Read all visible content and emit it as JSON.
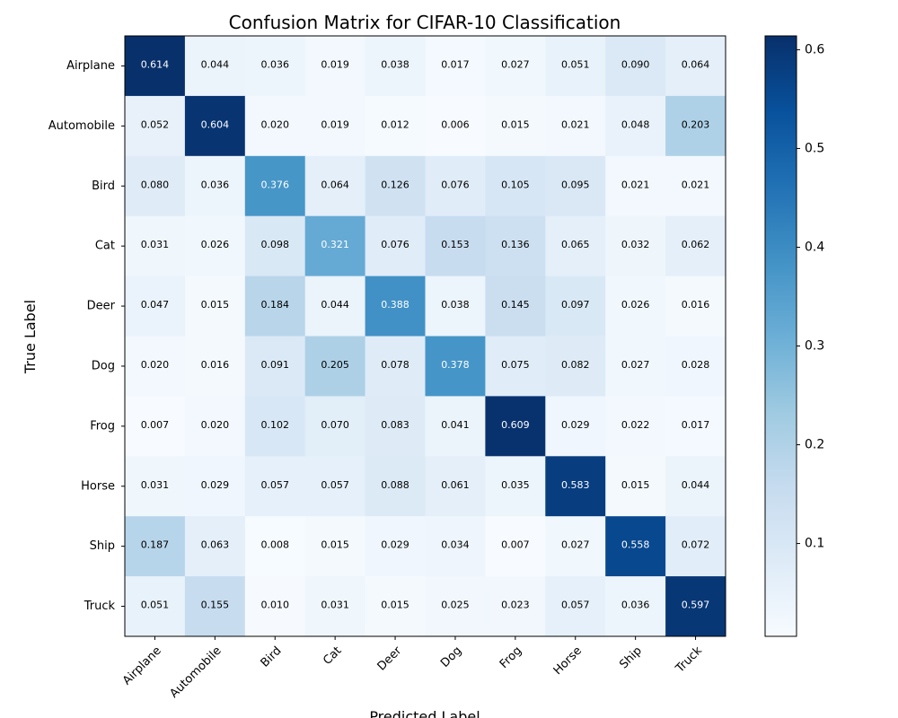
{
  "chart_data": {
    "type": "heatmap",
    "title": "Confusion Matrix for CIFAR-10 Classification",
    "xlabel": "Predicted Label",
    "ylabel": "True Label",
    "x_categories": [
      "Airplane",
      "Automobile",
      "Bird",
      "Cat",
      "Deer",
      "Dog",
      "Frog",
      "Horse",
      "Ship",
      "Truck"
    ],
    "y_categories": [
      "Airplane",
      "Automobile",
      "Bird",
      "Cat",
      "Deer",
      "Dog",
      "Frog",
      "Horse",
      "Ship",
      "Truck"
    ],
    "values": [
      [
        0.614,
        0.044,
        0.036,
        0.019,
        0.038,
        0.017,
        0.027,
        0.051,
        0.09,
        0.064
      ],
      [
        0.052,
        0.604,
        0.02,
        0.019,
        0.012,
        0.006,
        0.015,
        0.021,
        0.048,
        0.203
      ],
      [
        0.08,
        0.036,
        0.376,
        0.064,
        0.126,
        0.076,
        0.105,
        0.095,
        0.021,
        0.021
      ],
      [
        0.031,
        0.026,
        0.098,
        0.321,
        0.076,
        0.153,
        0.136,
        0.065,
        0.032,
        0.062
      ],
      [
        0.047,
        0.015,
        0.184,
        0.044,
        0.388,
        0.038,
        0.145,
        0.097,
        0.026,
        0.016
      ],
      [
        0.02,
        0.016,
        0.091,
        0.205,
        0.078,
        0.378,
        0.075,
        0.082,
        0.027,
        0.028
      ],
      [
        0.007,
        0.02,
        0.102,
        0.07,
        0.083,
        0.041,
        0.609,
        0.029,
        0.022,
        0.017
      ],
      [
        0.031,
        0.029,
        0.057,
        0.057,
        0.088,
        0.061,
        0.035,
        0.583,
        0.015,
        0.044
      ],
      [
        0.187,
        0.063,
        0.008,
        0.015,
        0.029,
        0.034,
        0.007,
        0.027,
        0.558,
        0.072
      ],
      [
        0.051,
        0.155,
        0.01,
        0.031,
        0.015,
        0.025,
        0.023,
        0.057,
        0.036,
        0.597
      ]
    ],
    "colormap": "Blues",
    "color_range": [
      0.006,
      0.614
    ],
    "colorbar_ticks": [
      "0.1",
      "0.2",
      "0.3",
      "0.4",
      "0.5",
      "0.6"
    ],
    "value_format": "3 decimals",
    "grid": false,
    "legend": "colorbar right"
  }
}
